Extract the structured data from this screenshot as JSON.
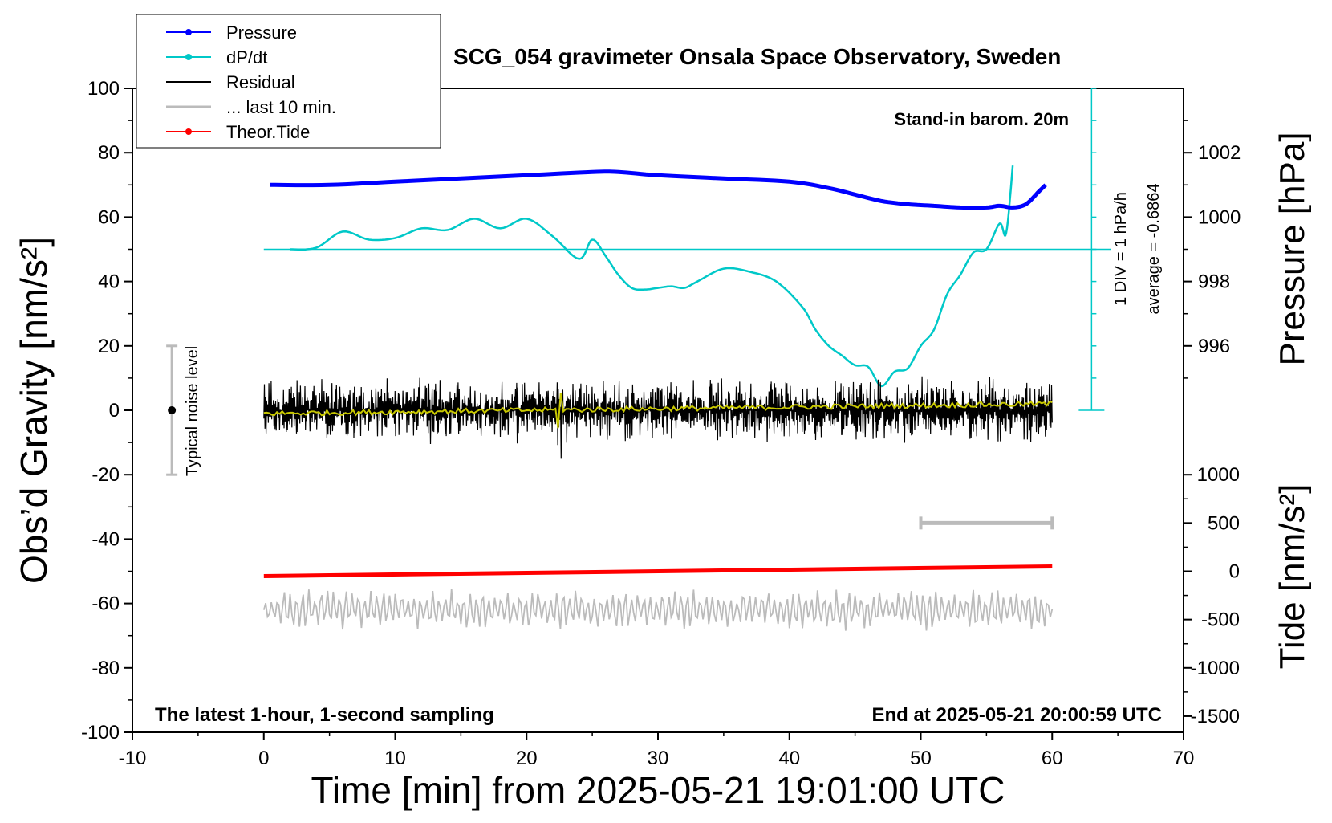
{
  "chart_data": {
    "type": "line",
    "title": "SCG_054 gravimeter Onsala Space Observatory, Sweden",
    "xlabel": "Time [min] from 2025-05-21 19:01:00 UTC",
    "ylabel_left": "Obs’d Gravity [nm/s²]",
    "ylabel_pressure": "Pressure [hPa]",
    "ylabel_tide": "Tide [nm/s²]",
    "xlim": [
      -10,
      70
    ],
    "ylim": [
      -100,
      100
    ],
    "pressure_lim": [
      994,
      1004
    ],
    "tide_lim": [
      -1500,
      1500
    ],
    "x_ticks": [
      "-10",
      "0",
      "10",
      "20",
      "30",
      "40",
      "50",
      "60",
      "70"
    ],
    "y_ticks": [
      "100",
      "80",
      "60",
      "40",
      "20",
      "0",
      "-20",
      "-40",
      "-60",
      "-80",
      "-100"
    ],
    "pressure_ticks": [
      "1002",
      "1000",
      "998",
      "996"
    ],
    "tide_ticks": [
      "1000",
      "500",
      "0",
      "-500",
      "-1000",
      "-1500"
    ],
    "legend": {
      "placement": "top-left",
      "entries": [
        {
          "label": "Pressure",
          "color": "#0000ff",
          "marker": true
        },
        {
          "label": "dP/dt",
          "color": "#00c8c8",
          "marker": true
        },
        {
          "label": "Residual",
          "color": "#000000",
          "marker": false
        },
        {
          "label": "... last 10 min.",
          "color": "#bbbbbb",
          "marker": false
        },
        {
          "label": "Theor.Tide",
          "color": "#ff0000",
          "marker": true
        }
      ]
    },
    "annotations": {
      "standin": "Stand-in barom. 20m",
      "latest": "The latest 1-hour, 1-second sampling",
      "end": "End at 2025-05-21 20:00:59 UTC",
      "noise": "Typical noise level",
      "div": "1 DIV = 1 hPa/h",
      "average": "average = -0.6864"
    },
    "pressure_series": {
      "name": "Pressure",
      "x": [
        0.5,
        5,
        10,
        15,
        20,
        25,
        27,
        30,
        35,
        40,
        43,
        45,
        47,
        49,
        51,
        53,
        55,
        56,
        57,
        58,
        59,
        59.5
      ],
      "y": [
        1001.0,
        1001.0,
        1001.1,
        1001.2,
        1001.3,
        1001.4,
        1001.4,
        1001.3,
        1001.2,
        1001.1,
        1000.9,
        1000.7,
        1000.5,
        1000.4,
        1000.35,
        1000.3,
        1000.3,
        1000.35,
        1000.3,
        1000.4,
        1000.8,
        1001.0
      ]
    },
    "dpdt_series": {
      "name": "dP/dt",
      "x": [
        2,
        4,
        6,
        8,
        10,
        12,
        14,
        16,
        18,
        20,
        22,
        24,
        25,
        26,
        27,
        28,
        29,
        30,
        31,
        32,
        33,
        35,
        37,
        39,
        41,
        42,
        43,
        44,
        45,
        46,
        47,
        48,
        49,
        50,
        51,
        52,
        53,
        54,
        55,
        56,
        56.5,
        57
      ],
      "y": [
        50,
        50.5,
        55.5,
        53,
        53.5,
        56.5,
        56,
        59.5,
        56.5,
        59.5,
        54,
        47,
        53,
        48,
        42,
        38,
        37.5,
        38,
        38.5,
        38,
        40,
        44,
        43,
        40,
        32,
        25,
        20,
        17,
        14,
        13.5,
        7.5,
        12,
        13,
        20,
        25,
        36,
        42,
        49,
        50,
        58,
        55,
        76
      ]
    },
    "dpdt_baseline": 50,
    "residual_series": {
      "name": "Residual",
      "x_range": [
        0,
        60
      ],
      "center": 0,
      "amplitude": 6,
      "spike_x": 22.5
    },
    "smoothed_series": {
      "x_range": [
        0,
        60
      ],
      "y_start": -1,
      "y_end": 2,
      "color": "#c8c800"
    },
    "last10_series": {
      "name": "... last 10 min.",
      "x_range": [
        0,
        60
      ],
      "center": -62,
      "amplitude": 6
    },
    "tide_series": {
      "name": "Theor.Tide",
      "x": [
        0,
        60
      ],
      "y": [
        -50,
        50
      ]
    },
    "noise_bar": {
      "x": -7,
      "y": [
        -20,
        20
      ]
    },
    "last10_bar": {
      "x": [
        50,
        60
      ],
      "tide_level": 500
    },
    "dpdt_scale_axis": {
      "x": 63,
      "y": [
        0,
        100
      ]
    }
  }
}
